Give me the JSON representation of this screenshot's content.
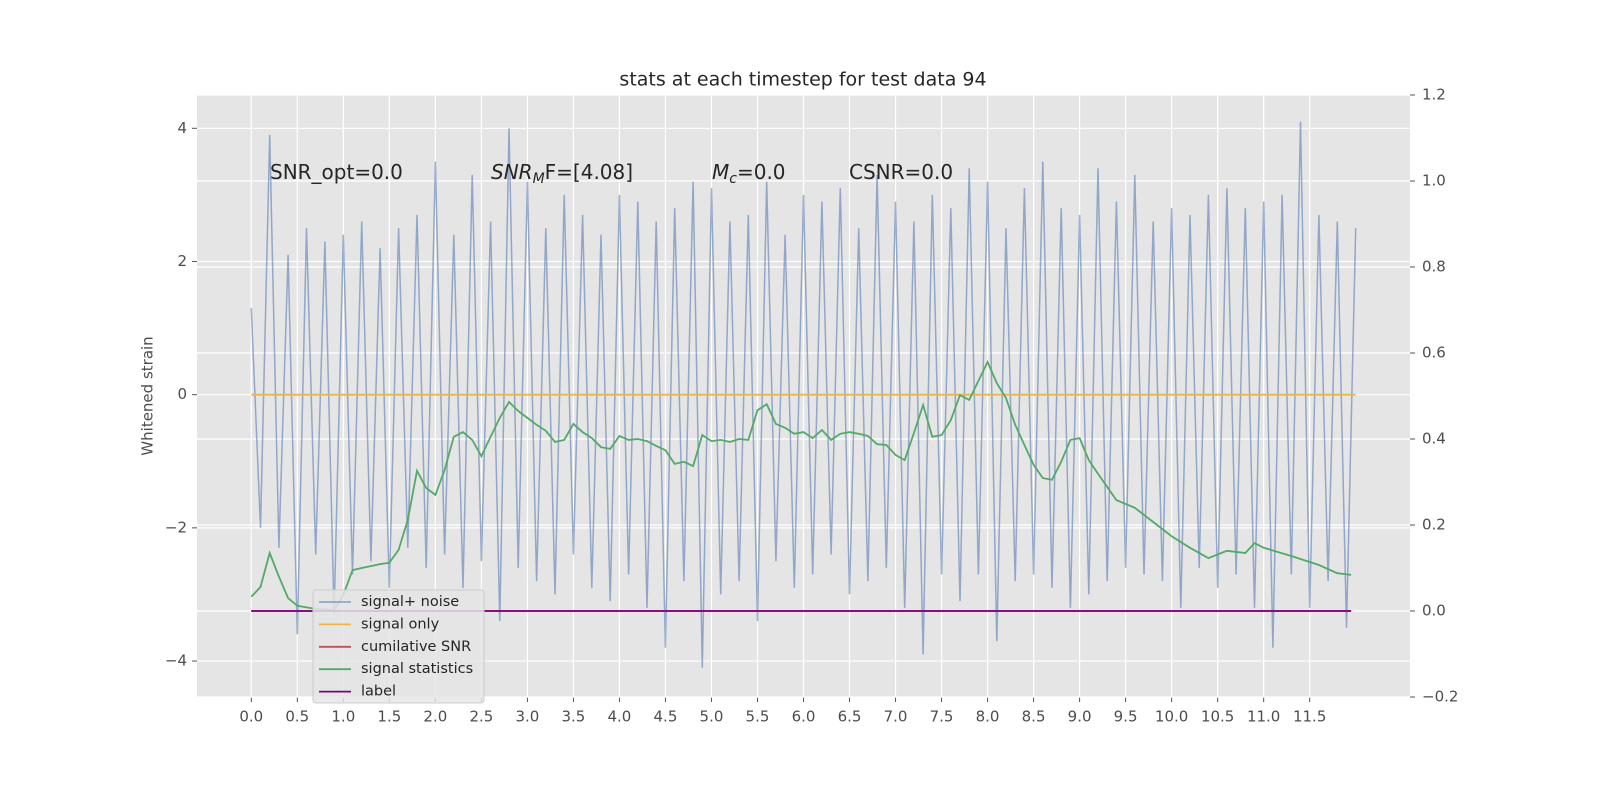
{
  "chart_data": {
    "type": "line",
    "title": "stats at each timestep for test data 94",
    "ylabel": "Whitened strain",
    "annotations": [
      {
        "base": "SNR_opt=0.0"
      },
      {
        "base": "SNR",
        "sub": "M",
        "rest": "F=[4.08]"
      },
      {
        "base": "M",
        "sub": "c",
        "rest": "=0.0"
      },
      {
        "base": "CSNR=0.0"
      }
    ],
    "xlim": [
      -0.59,
      12.59
    ],
    "ylim": [
      -4.54,
      4.5
    ],
    "y2lim": [
      -0.2,
      1.2
    ],
    "xticks": [
      {
        "value": 0,
        "label": "0.0"
      },
      0.5,
      {
        "value": 1,
        "label": "1.0"
      },
      1.5,
      {
        "value": 2,
        "label": "2.0"
      },
      2.5,
      {
        "value": 3,
        "label": "3.0"
      },
      3.5,
      {
        "value": 4,
        "label": "4.0"
      },
      4.5,
      {
        "value": 5,
        "label": "5.0"
      },
      5.5,
      {
        "value": 6,
        "label": "6.0"
      },
      6.5,
      {
        "value": 7,
        "label": "7.0"
      },
      7.5,
      {
        "value": 8,
        "label": "8.0"
      },
      8.5,
      {
        "value": 9,
        "label": "9.0"
      },
      9.5,
      {
        "value": 10,
        "label": "10.0"
      },
      10.5,
      {
        "value": 11,
        "label": "11.0"
      },
      11.5
    ],
    "yticks": [
      {
        "value": -4,
        "label": "−4"
      },
      {
        "value": -2,
        "label": "−2"
      },
      0,
      2,
      4
    ],
    "y2ticks": [
      {
        "value": -0.2,
        "label": "−0.2"
      },
      {
        "value": 0,
        "label": "0.0"
      },
      0.2,
      0.4,
      0.6,
      0.8,
      {
        "value": 1,
        "label": "1.0"
      },
      1.2
    ],
    "grid": true,
    "legend": "lower left",
    "series": [
      {
        "name": "signal+ noise",
        "color": "#4c72b0",
        "x": [
          0,
          0.1,
          0.2,
          0.3,
          0.4,
          0.5,
          0.6,
          0.7,
          0.8,
          0.9,
          1,
          1.1,
          1.2,
          1.3,
          1.4,
          1.5,
          1.6,
          1.7,
          1.8,
          1.9,
          2,
          2.1,
          2.2,
          2.3,
          2.4,
          2.5,
          2.6,
          2.7,
          2.8,
          2.9,
          3,
          3.1,
          3.2,
          3.3,
          3.4,
          3.5,
          3.6,
          3.7,
          3.8,
          3.9,
          4,
          4.1,
          4.2,
          4.3,
          4.4,
          4.5,
          4.6,
          4.7,
          4.8,
          4.9,
          5,
          5.1,
          5.2,
          5.3,
          5.4,
          5.5,
          5.6,
          5.7,
          5.8,
          5.9,
          6,
          6.1,
          6.2,
          6.3,
          6.4,
          6.5,
          6.6,
          6.7,
          6.8,
          6.9,
          7,
          7.1,
          7.2,
          7.3,
          7.4,
          7.5,
          7.6,
          7.7,
          7.8,
          7.9,
          8,
          8.1,
          8.2,
          8.3,
          8.4,
          8.5,
          8.6,
          8.7,
          8.8,
          8.9,
          9,
          9.1,
          9.2,
          9.3,
          9.4,
          9.5,
          9.6,
          9.7,
          9.8,
          9.9,
          10,
          10.1,
          10.2,
          10.3,
          10.4,
          10.5,
          10.6,
          10.7,
          10.8,
          10.9,
          11,
          11.1,
          11.2,
          11.3,
          11.4,
          11.5,
          11.6,
          11.7,
          11.8,
          11.9,
          12
        ],
        "values": [
          1.3,
          -2.0,
          3.9,
          -2.3,
          2.1,
          -3.6,
          2.5,
          -2.4,
          2.3,
          -3.3,
          2.4,
          -2.7,
          2.6,
          -2.5,
          2.2,
          -2.9,
          2.5,
          -2.3,
          2.7,
          -2.6,
          3.5,
          -2.4,
          2.4,
          -2.9,
          3.3,
          -2.5,
          2.6,
          -3.4,
          4.0,
          -2.6,
          3.2,
          -2.8,
          2.5,
          -3.0,
          3.0,
          -2.4,
          2.7,
          -2.9,
          2.4,
          -3.1,
          3.0,
          -2.7,
          2.9,
          -3.2,
          2.6,
          -3.8,
          2.8,
          -2.8,
          3.2,
          -4.1,
          3.1,
          -3.0,
          2.6,
          -2.8,
          2.7,
          -3.4,
          3.2,
          -2.5,
          2.4,
          -2.9,
          3.0,
          -2.7,
          2.9,
          -2.4,
          3.1,
          -3.0,
          2.5,
          -2.8,
          3.3,
          -2.6,
          2.9,
          -3.2,
          2.6,
          -3.9,
          3.0,
          -2.7,
          2.8,
          -3.1,
          3.4,
          -2.7,
          3.2,
          -3.7,
          2.5,
          -2.8,
          3.1,
          -2.7,
          3.5,
          -2.9,
          2.8,
          -3.2,
          2.7,
          -3.0,
          3.4,
          -2.8,
          2.9,
          -2.6,
          3.3,
          -2.7,
          2.6,
          -2.8,
          2.8,
          -3.2,
          2.7,
          -2.6,
          3.0,
          -2.9,
          3.1,
          -2.7,
          2.8,
          -3.2,
          2.9,
          -3.8,
          3.0,
          -2.7,
          4.1,
          -3.2,
          2.7,
          -2.8,
          2.6,
          -3.5,
          2.5
        ]
      },
      {
        "name": "signal only",
        "color": "#e8b84a",
        "x": [
          0,
          12
        ],
        "values": [
          0,
          0
        ]
      },
      {
        "name": "cumilative SNR",
        "color": "#c44e52",
        "axis": "y2",
        "x": [
          0,
          11.95
        ],
        "values": [
          0,
          0
        ]
      },
      {
        "name": "signal statistics",
        "color": "#55a868",
        "axis": "y2",
        "x": [
          0,
          0.1,
          0.2,
          0.3,
          0.4,
          0.5,
          0.7,
          0.9,
          1,
          1.1,
          1.2,
          1.4,
          1.5,
          1.6,
          1.7,
          1.8,
          1.9,
          2,
          2.1,
          2.2,
          2.3,
          2.4,
          2.5,
          2.6,
          2.7,
          2.8,
          2.9,
          3,
          3.1,
          3.2,
          3.3,
          3.4,
          3.5,
          3.6,
          3.7,
          3.8,
          3.9,
          4,
          4.1,
          4.2,
          4.3,
          4.4,
          4.5,
          4.6,
          4.7,
          4.8,
          4.9,
          5,
          5.1,
          5.2,
          5.3,
          5.4,
          5.5,
          5.6,
          5.7,
          5.8,
          5.9,
          6,
          6.1,
          6.2,
          6.3,
          6.4,
          6.5,
          6.6,
          6.7,
          6.8,
          6.9,
          7,
          7.1,
          7.2,
          7.3,
          7.4,
          7.5,
          7.6,
          7.7,
          7.8,
          7.9,
          8,
          8.1,
          8.2,
          8.3,
          8.4,
          8.5,
          8.6,
          8.7,
          8.8,
          8.9,
          9,
          9.1,
          9.2,
          9.4,
          9.6,
          9.8,
          10,
          10.2,
          10.4,
          10.6,
          10.8,
          10.9,
          11,
          11.3,
          11.6,
          11.8,
          11.95
        ],
        "values": [
          0.033,
          0.056,
          0.135,
          0.08,
          0.03,
          0.012,
          0.005,
          0.002,
          0.037,
          0.095,
          0.1,
          0.109,
          0.112,
          0.142,
          0.212,
          0.326,
          0.286,
          0.27,
          0.328,
          0.405,
          0.416,
          0.398,
          0.36,
          0.405,
          0.449,
          0.486,
          0.465,
          0.449,
          0.433,
          0.419,
          0.393,
          0.398,
          0.435,
          0.416,
          0.402,
          0.381,
          0.377,
          0.407,
          0.398,
          0.4,
          0.395,
          0.384,
          0.374,
          0.342,
          0.347,
          0.337,
          0.409,
          0.395,
          0.398,
          0.393,
          0.4,
          0.398,
          0.467,
          0.481,
          0.435,
          0.426,
          0.412,
          0.416,
          0.402,
          0.421,
          0.398,
          0.412,
          0.416,
          0.412,
          0.407,
          0.388,
          0.386,
          0.363,
          0.351,
          0.414,
          0.479,
          0.405,
          0.409,
          0.444,
          0.502,
          0.491,
          0.535,
          0.579,
          0.53,
          0.495,
          0.433,
          0.386,
          0.34,
          0.309,
          0.305,
          0.347,
          0.398,
          0.402,
          0.351,
          0.319,
          0.258,
          0.24,
          0.207,
          0.174,
          0.147,
          0.123,
          0.14,
          0.135,
          0.158,
          0.147,
          0.128,
          0.107,
          0.088,
          0.084
        ]
      },
      {
        "name": "label",
        "color": "#800080",
        "axis": "y2",
        "x": [
          0,
          11.95
        ],
        "values": [
          0,
          0
        ]
      }
    ]
  }
}
